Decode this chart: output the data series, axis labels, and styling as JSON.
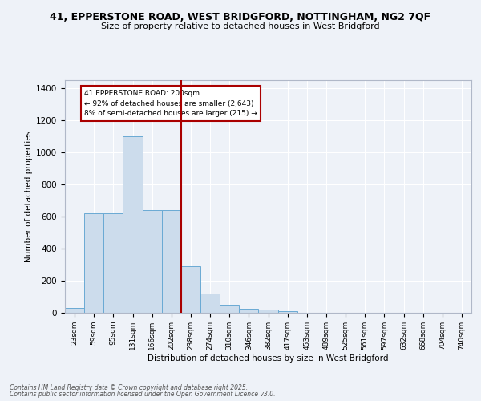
{
  "title_line1": "41, EPPERSTONE ROAD, WEST BRIDGFORD, NOTTINGHAM, NG2 7QF",
  "title_line2": "Size of property relative to detached houses in West Bridgford",
  "xlabel": "Distribution of detached houses by size in West Bridgford",
  "ylabel": "Number of detached properties",
  "categories": [
    "23sqm",
    "59sqm",
    "95sqm",
    "131sqm",
    "166sqm",
    "202sqm",
    "238sqm",
    "274sqm",
    "310sqm",
    "346sqm",
    "382sqm",
    "417sqm",
    "453sqm",
    "489sqm",
    "525sqm",
    "561sqm",
    "597sqm",
    "632sqm",
    "668sqm",
    "704sqm",
    "740sqm"
  ],
  "values": [
    30,
    620,
    620,
    1100,
    640,
    640,
    290,
    120,
    50,
    25,
    20,
    10,
    0,
    0,
    0,
    0,
    0,
    0,
    0,
    0,
    0
  ],
  "bar_color": "#ccdcec",
  "bar_edge_color": "#6aaad4",
  "vline_x": 5.5,
  "vline_color": "#aa0000",
  "annotation_text": "41 EPPERSTONE ROAD: 200sqm\n← 92% of detached houses are smaller (2,643)\n8% of semi-detached houses are larger (215) →",
  "annotation_box_color": "#aa0000",
  "annotation_fill": "white",
  "ylim": [
    0,
    1450
  ],
  "yticks": [
    0,
    200,
    400,
    600,
    800,
    1000,
    1200,
    1400
  ],
  "background_color": "#eef2f8",
  "grid_color": "#ffffff",
  "footer_line1": "Contains HM Land Registry data © Crown copyright and database right 2025.",
  "footer_line2": "Contains public sector information licensed under the Open Government Licence v3.0."
}
